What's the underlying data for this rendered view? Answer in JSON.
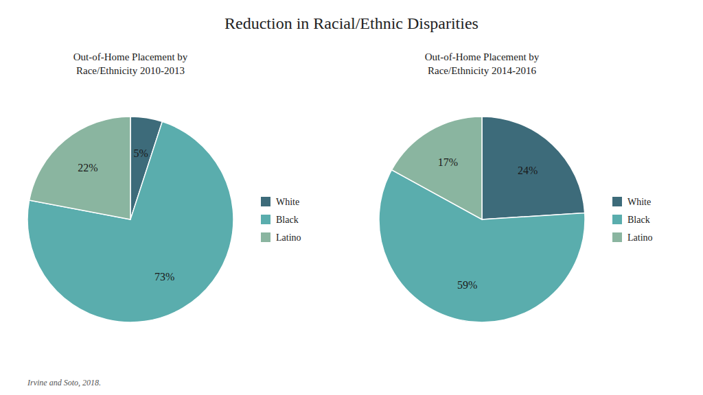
{
  "title": "Reduction in Racial/Ethnic Disparities",
  "annotations": [
    "Irvine and Soto, 2018."
  ],
  "chart_data": [
    {
      "type": "pie",
      "title": "Out-of-Home Placement by\nRace/Ethnicity 2010-2013",
      "categories": [
        "White",
        "Black",
        "Latino"
      ],
      "values": [
        5,
        73,
        22
      ],
      "value_labels": [
        "5%",
        "73%",
        "22%"
      ],
      "colors": [
        "#3d6b7a",
        "#5aadad",
        "#8ab5a0"
      ],
      "data_labels": true,
      "legend": "right"
    },
    {
      "type": "pie",
      "title": "Out-of-Home Placement by\nRace/Ethnicity 2014-2016",
      "categories": [
        "White",
        "Black",
        "Latino"
      ],
      "values": [
        24,
        59,
        17
      ],
      "value_labels": [
        "24%",
        "59%",
        "17%"
      ],
      "colors": [
        "#3d6b7a",
        "#5aadad",
        "#8ab5a0"
      ],
      "data_labels": true,
      "legend": "right"
    }
  ]
}
